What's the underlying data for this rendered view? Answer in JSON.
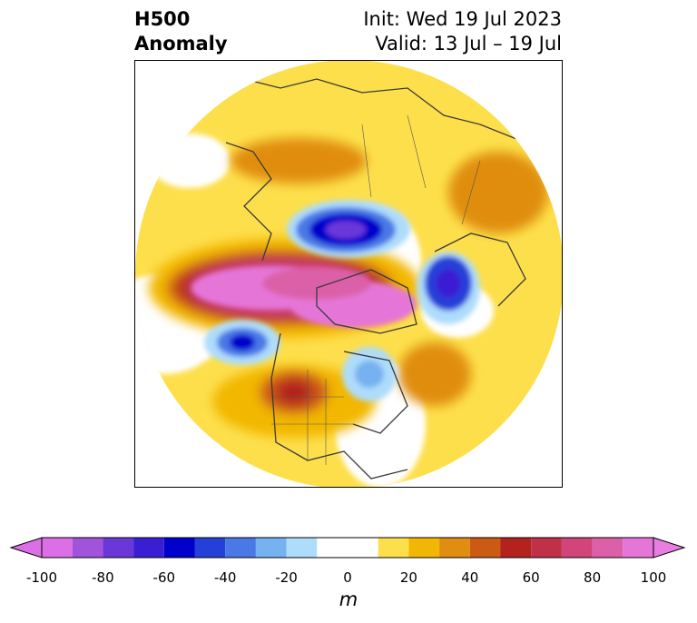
{
  "title": {
    "left_line1": "H500",
    "left_line2": "Anomaly",
    "right_line1": "Init: Wed 19 Jul 2023",
    "right_line2": "Valid: 13 Jul – 19 Jul"
  },
  "colorbar": {
    "units": "m",
    "ticks": [
      "-100",
      "-80",
      "-60",
      "-40",
      "-20",
      "0",
      "20",
      "40",
      "60",
      "80",
      "100"
    ],
    "tick_values": [
      -100,
      -80,
      -60,
      -40,
      -20,
      0,
      20,
      40,
      60,
      80,
      100
    ],
    "bins": [
      -100,
      -90,
      -80,
      -70,
      -60,
      -50,
      -40,
      -30,
      -20,
      -10,
      10,
      20,
      30,
      40,
      50,
      60,
      70,
      80,
      90,
      100
    ],
    "colors": [
      "#dc6fe6",
      "#a153dc",
      "#6a37d9",
      "#3a1ed4",
      "#0000cc",
      "#2540d8",
      "#4a78e6",
      "#76b1f0",
      "#aedcfb",
      "#ffffff",
      "#fddf4c",
      "#f2b705",
      "#e08d10",
      "#cb5a15",
      "#b3221e",
      "#c03148",
      "#d1457a",
      "#dc60a8",
      "#e576d8"
    ],
    "extend_low_color": "#dc6fe6",
    "extend_high_color": "#e87ee2"
  },
  "map": {
    "projection": "north-polar-stereographic"
  }
}
